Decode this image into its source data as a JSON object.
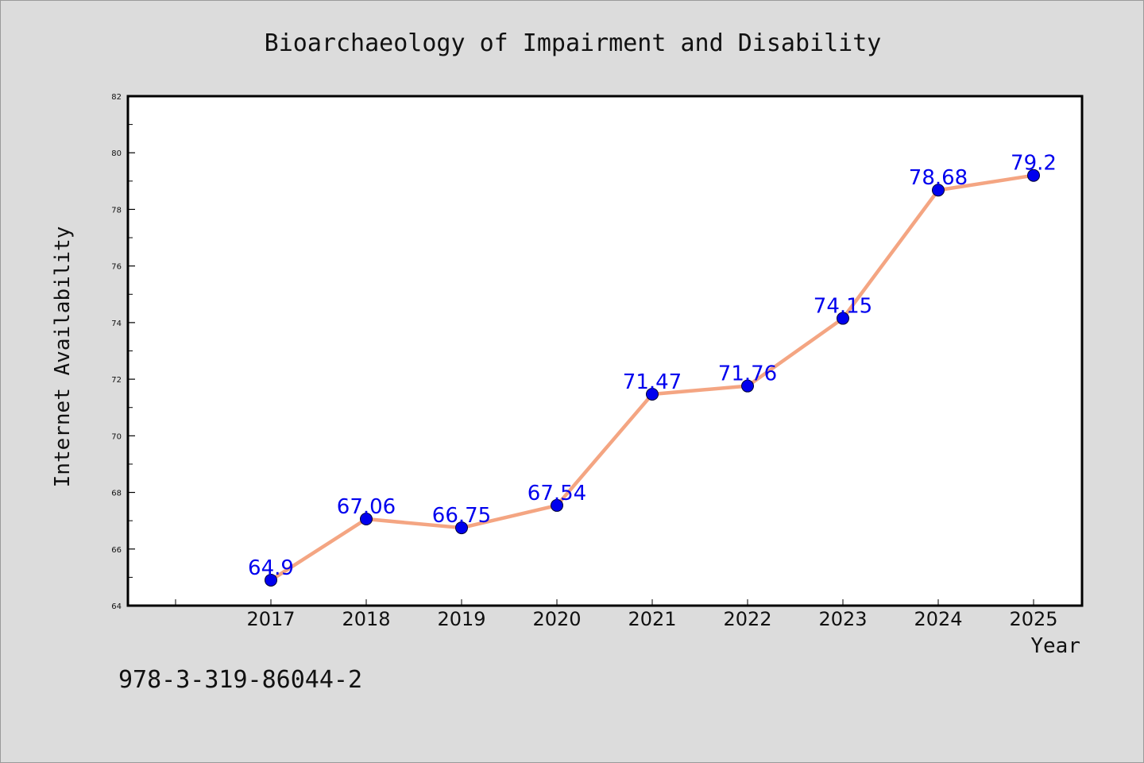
{
  "chart_data": {
    "type": "line",
    "title": "Bioarchaeology of Impairment and Disability",
    "xlabel": "Year",
    "ylabel": "Internet Availability",
    "categories": [
      "2017",
      "2018",
      "2019",
      "2020",
      "2021",
      "2022",
      "2023",
      "2024",
      "2025"
    ],
    "series": [
      {
        "values": [
          64.9,
          67.06,
          66.75,
          67.54,
          71.47,
          71.76,
          74.15,
          78.68,
          79.2
        ],
        "data_labels": [
          "64.9",
          "67.06",
          "66.75",
          "67.54",
          "71.47",
          "71.76",
          "74.15",
          "78.68",
          "79.2"
        ]
      }
    ],
    "ylim": [
      64,
      82
    ],
    "y_ticks": [
      "64",
      "66",
      "68",
      "70",
      "72",
      "74",
      "76",
      "78",
      "80",
      "82"
    ],
    "grid": false,
    "legend": "none",
    "colors": {
      "line": "#f4a582",
      "marker": "#0000ee",
      "data_label": "#0000ee",
      "background": "#dcdcdc",
      "plot_background": "#ffffff"
    }
  },
  "footer": {
    "isbn": "978-3-319-86044-2"
  }
}
